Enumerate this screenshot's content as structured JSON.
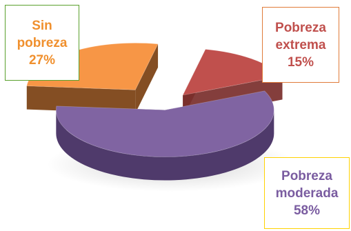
{
  "chart_data": {
    "type": "pie",
    "style": "3d-exploded",
    "slices": [
      {
        "label_lines": [
          "Pobreza",
          "extrema"
        ],
        "value": 15,
        "value_label": "15%",
        "color": "#c0504d",
        "side_color": "#7a2e2b",
        "label_color": "#c0504d",
        "border_color": "#e07b39"
      },
      {
        "label_lines": [
          "Pobreza",
          "moderada"
        ],
        "value": 58,
        "value_label": "58%",
        "color": "#8064a2",
        "side_color": "#4f3a6b",
        "label_color": "#7a5ca0",
        "border_color": "#ffd200"
      },
      {
        "label_lines": [
          "Sin",
          "pobreza"
        ],
        "value": 27,
        "value_label": "27%",
        "color": "#f79646",
        "side_color": "#7a3f10",
        "label_color": "#f0902e",
        "border_color": "#5aa02c"
      }
    ],
    "legend": "none"
  }
}
